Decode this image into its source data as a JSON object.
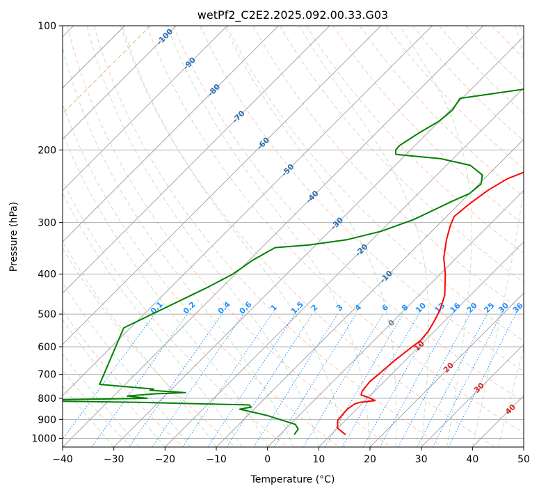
{
  "chart_data": {
    "type": "line",
    "title": "wetPf2_C2E2.2025.092.00.33.G03",
    "xlabel": "Temperature (°C)",
    "ylabel": "Pressure (hPa)",
    "xlim": [
      -40,
      50
    ],
    "ylim": [
      1050,
      100
    ],
    "y_scale": "log",
    "grid": true,
    "x_ticks": [
      -40,
      -30,
      -20,
      -10,
      0,
      10,
      20,
      30,
      40,
      50
    ],
    "x_tick_labels": [
      "−40",
      "−30",
      "−20",
      "−10",
      "0",
      "10",
      "20",
      "30",
      "40",
      "50"
    ],
    "y_ticks": [
      100,
      200,
      300,
      400,
      500,
      600,
      700,
      800,
      900,
      1000
    ],
    "y_tick_labels": [
      "100",
      "200",
      "300",
      "400",
      "500",
      "600",
      "700",
      "800",
      "900",
      "1000"
    ],
    "skew_isotherm_labels": {
      "values": [
        -100,
        -90,
        -80,
        -70,
        -60,
        -50,
        -40,
        -30,
        -20,
        -10
      ],
      "labels": [
        "-100",
        "-90",
        "-80",
        "-70",
        "-60",
        "-50",
        "-40",
        "-30",
        "-20",
        "-10"
      ],
      "color": "#2a6fb0"
    },
    "mixing_ratio_labels": {
      "values": [
        0.1,
        0.2,
        0.4,
        0.6,
        1,
        1.5,
        2,
        3,
        4,
        6,
        8,
        10,
        13,
        16,
        20,
        25,
        30,
        36
      ],
      "labels": [
        "0.1",
        "0.2",
        "0.4",
        "0.6",
        "1",
        "1.5",
        "2",
        "3",
        "4",
        "6",
        "8",
        "10",
        "13",
        "16",
        "20",
        "25",
        "30",
        "36"
      ],
      "color": "#1e90ff"
    },
    "positive_isotherm_labels": {
      "values": [
        0,
        10,
        20,
        30,
        40
      ],
      "labels": [
        "0",
        "10",
        "20",
        "30",
        "40"
      ],
      "colors": [
        "#808080",
        "#d62728",
        "#d62728",
        "#d62728",
        "#d62728"
      ]
    },
    "series": [
      {
        "color": "#ff0000",
        "points": [
          [
            12.8,
            980
          ],
          [
            10.0,
            945
          ],
          [
            8.5,
            905
          ],
          [
            8.3,
            875
          ],
          [
            8.2,
            850
          ],
          [
            8.6,
            825
          ],
          [
            9.3,
            818
          ],
          [
            10.5,
            815
          ],
          [
            11.9,
            810
          ],
          [
            10.3,
            798
          ],
          [
            8.1,
            785
          ],
          [
            7.6,
            770
          ],
          [
            7.4,
            750
          ],
          [
            7.2,
            728
          ],
          [
            7.5,
            700
          ],
          [
            7.9,
            650
          ],
          [
            8.7,
            600
          ],
          [
            9.1,
            580
          ],
          [
            8.8,
            550
          ],
          [
            8.0,
            520
          ],
          [
            7.0,
            490
          ],
          [
            5.0,
            450
          ],
          [
            1.0,
            400
          ],
          [
            -2.5,
            365
          ],
          [
            -5.5,
            330
          ],
          [
            -7.5,
            305
          ],
          [
            -8.5,
            290
          ],
          [
            -8.0,
            270
          ],
          [
            -7.0,
            250
          ],
          [
            -5.5,
            235
          ],
          [
            -2.0,
            220
          ],
          [
            2.0,
            205
          ],
          [
            4.8,
            195
          ],
          [
            7.5,
            180
          ],
          [
            9.8,
            165
          ],
          [
            12.6,
            150
          ],
          [
            14.4,
            138
          ],
          [
            15.5,
            128
          ],
          [
            16.8,
            118
          ],
          [
            18.7,
            108
          ],
          [
            20.5,
            100
          ]
        ]
      },
      {
        "color": "#008000",
        "points": [
          [
            2.8,
            980
          ],
          [
            2.5,
            950
          ],
          [
            1.0,
            925
          ],
          [
            -6.3,
            880
          ],
          [
            -12.8,
            850
          ],
          [
            -11.0,
            840
          ],
          [
            -11.8,
            830
          ],
          [
            -34.0,
            818
          ],
          [
            -58.5,
            810
          ],
          [
            -33.0,
            800
          ],
          [
            -37.3,
            790
          ],
          [
            -32.3,
            780
          ],
          [
            -26.6,
            775
          ],
          [
            -34.0,
            765
          ],
          [
            -33.5,
            760
          ],
          [
            -45.0,
            740
          ],
          [
            -51.3,
            540
          ],
          [
            -42.8,
            430
          ],
          [
            -40.5,
            400
          ],
          [
            -39.3,
            370
          ],
          [
            -37.4,
            345
          ],
          [
            -31.4,
            340
          ],
          [
            -24.9,
            330
          ],
          [
            -19.9,
            315
          ],
          [
            -15.8,
            295
          ],
          [
            -13.8,
            280
          ],
          [
            -12.0,
            267
          ],
          [
            -10.0,
            255
          ],
          [
            -9.6,
            242
          ],
          [
            -11.1,
            230
          ],
          [
            -15.3,
            218
          ],
          [
            -22.4,
            210
          ],
          [
            -32.0,
            205
          ],
          [
            -32.9,
            200
          ],
          [
            -33.0,
            195
          ],
          [
            -32.5,
            190
          ],
          [
            -31.7,
            182
          ],
          [
            -30.0,
            170
          ],
          [
            -29.6,
            160
          ],
          [
            -30.4,
            150
          ],
          [
            -16.1,
            140
          ],
          [
            -8.8,
            132
          ],
          [
            -5.5,
            125
          ],
          [
            -2.0,
            118
          ],
          [
            -1.0,
            110
          ],
          [
            -0.3,
            103
          ],
          [
            0.0,
            100
          ]
        ]
      }
    ]
  }
}
